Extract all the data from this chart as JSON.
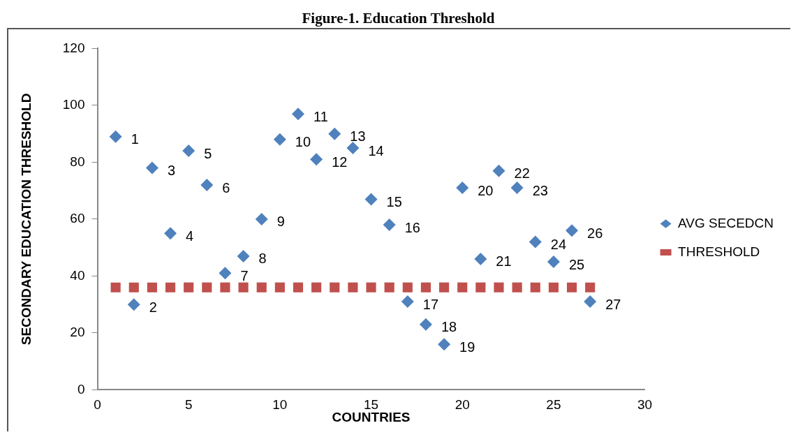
{
  "chart_data": {
    "type": "scatter",
    "title": "Figure-1.  Education Threshold",
    "xlabel": "COUNTRIES",
    "ylabel": "SECONDARY EDUCATION THRESHOLD",
    "x": [
      1,
      2,
      3,
      4,
      5,
      6,
      7,
      8,
      9,
      10,
      11,
      12,
      13,
      14,
      15,
      16,
      17,
      18,
      19,
      20,
      21,
      22,
      23,
      24,
      25,
      26,
      27
    ],
    "series": [
      {
        "name": "AVG SECEDCN",
        "color": "#4f81bd",
        "marker": "diamond",
        "values": [
          89,
          30,
          78,
          55,
          84,
          72,
          41,
          47,
          60,
          88,
          97,
          81,
          90,
          85,
          67,
          58,
          31,
          23,
          16,
          71,
          46,
          77,
          71,
          52,
          45,
          56,
          31
        ]
      },
      {
        "name": "THRESHOLD",
        "color": "#c0504d",
        "marker": "square",
        "values": [
          36,
          36,
          36,
          36,
          36,
          36,
          36,
          36,
          36,
          36,
          36,
          36,
          36,
          36,
          36,
          36,
          36,
          36,
          36,
          36,
          36,
          36,
          36,
          36,
          36,
          36,
          36
        ]
      }
    ],
    "xlim": [
      0,
      30
    ],
    "xticks": [
      0,
      5,
      10,
      15,
      20,
      25,
      30
    ],
    "ylim": [
      0,
      120
    ],
    "yticks": [
      0,
      20,
      40,
      60,
      80,
      100,
      120
    ],
    "grid": false,
    "legend": "right",
    "annotations": [
      {
        "text": "1",
        "x": 1,
        "y": 89
      },
      {
        "text": "2",
        "x": 2,
        "y": 30
      },
      {
        "text": "3",
        "x": 3,
        "y": 78
      },
      {
        "text": "4",
        "x": 4,
        "y": 55
      },
      {
        "text": "5",
        "x": 5,
        "y": 84
      },
      {
        "text": "6",
        "x": 6,
        "y": 72
      },
      {
        "text": "7",
        "x": 7,
        "y": 41
      },
      {
        "text": "8",
        "x": 8,
        "y": 47
      },
      {
        "text": "9",
        "x": 9,
        "y": 60
      },
      {
        "text": "10",
        "x": 10,
        "y": 88
      },
      {
        "text": "11",
        "x": 11,
        "y": 97
      },
      {
        "text": "12",
        "x": 12,
        "y": 81
      },
      {
        "text": "13",
        "x": 13,
        "y": 90
      },
      {
        "text": "14",
        "x": 14,
        "y": 85
      },
      {
        "text": "15",
        "x": 15,
        "y": 67
      },
      {
        "text": "16",
        "x": 16,
        "y": 58
      },
      {
        "text": "17",
        "x": 17,
        "y": 31
      },
      {
        "text": "18",
        "x": 18,
        "y": 23
      },
      {
        "text": "19",
        "x": 19,
        "y": 16
      },
      {
        "text": "20",
        "x": 20,
        "y": 71
      },
      {
        "text": "21",
        "x": 21,
        "y": 46
      },
      {
        "text": "22",
        "x": 22,
        "y": 77
      },
      {
        "text": "23",
        "x": 23,
        "y": 71
      },
      {
        "text": "24",
        "x": 24,
        "y": 52
      },
      {
        "text": "25",
        "x": 25,
        "y": 45
      },
      {
        "text": "26",
        "x": 26,
        "y": 56
      },
      {
        "text": "27",
        "x": 27,
        "y": 31
      }
    ]
  }
}
